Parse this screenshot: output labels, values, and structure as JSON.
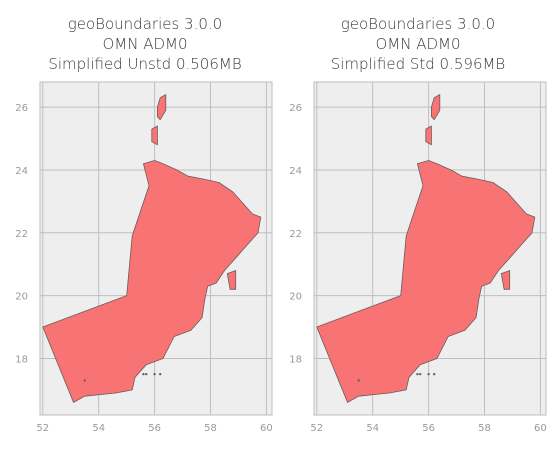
{
  "panels": [
    {
      "title_lines": [
        "geoBoundaries 3.0.0",
        "OMN ADM0",
        "Simplified Unstd 0.506MB"
      ],
      "x_ticks": [
        "52",
        "54",
        "56",
        "58",
        "60"
      ],
      "y_ticks": [
        "18",
        "20",
        "22",
        "24",
        "26"
      ]
    },
    {
      "title_lines": [
        "geoBoundaries 3.0.0",
        "OMN ADM0",
        "Simplified Std 0.596MB"
      ],
      "x_ticks": [
        "52",
        "54",
        "56",
        "58",
        "60"
      ],
      "y_ticks": [
        "18",
        "20",
        "22",
        "24",
        "26"
      ]
    }
  ],
  "colors": {
    "fill": "#f87474",
    "edge": "#6b5a5a",
    "background": "#eeeeee",
    "grid": "#bfbfbf"
  },
  "chart_data": {
    "type": "map",
    "x_range": [
      51.9,
      60.2
    ],
    "y_range": [
      16.2,
      26.8
    ],
    "grid": true,
    "main_polygon": [
      [
        52.0,
        19.0
      ],
      [
        55.0,
        20.0
      ],
      [
        55.2,
        21.9
      ],
      [
        55.5,
        22.7
      ],
      [
        55.8,
        23.5
      ],
      [
        55.6,
        24.2
      ],
      [
        56.0,
        24.3
      ],
      [
        56.3,
        24.2
      ],
      [
        56.8,
        24.0
      ],
      [
        57.2,
        23.8
      ],
      [
        57.8,
        23.7
      ],
      [
        58.3,
        23.6
      ],
      [
        58.8,
        23.3
      ],
      [
        59.2,
        22.9
      ],
      [
        59.5,
        22.6
      ],
      [
        59.8,
        22.5
      ],
      [
        59.7,
        22.0
      ],
      [
        59.3,
        21.6
      ],
      [
        59.0,
        21.3
      ],
      [
        58.5,
        20.8
      ],
      [
        58.2,
        20.4
      ],
      [
        57.9,
        20.3
      ],
      [
        57.8,
        19.9
      ],
      [
        57.7,
        19.3
      ],
      [
        57.3,
        18.9
      ],
      [
        56.7,
        18.7
      ],
      [
        56.3,
        18.0
      ],
      [
        55.7,
        17.8
      ],
      [
        55.3,
        17.4
      ],
      [
        55.2,
        17.0
      ],
      [
        54.6,
        16.9
      ],
      [
        53.5,
        16.8
      ],
      [
        53.1,
        16.6
      ]
    ],
    "musandam_polygon": [
      [
        56.1,
        26.0
      ],
      [
        56.2,
        26.3
      ],
      [
        56.4,
        26.4
      ],
      [
        56.4,
        25.9
      ],
      [
        56.2,
        25.6
      ],
      [
        56.1,
        25.7
      ]
    ],
    "madha_polygon": [
      [
        55.9,
        25.3
      ],
      [
        56.1,
        25.4
      ],
      [
        56.1,
        24.8
      ],
      [
        55.9,
        24.9
      ]
    ],
    "masirah_polygon": [
      [
        58.6,
        20.7
      ],
      [
        58.9,
        20.8
      ],
      [
        58.9,
        20.2
      ],
      [
        58.7,
        20.2
      ]
    ],
    "small_islands": [
      [
        56.0,
        17.5
      ],
      [
        55.7,
        17.5
      ],
      [
        55.6,
        17.5
      ],
      [
        56.2,
        17.5
      ],
      [
        53.5,
        17.3
      ]
    ]
  }
}
